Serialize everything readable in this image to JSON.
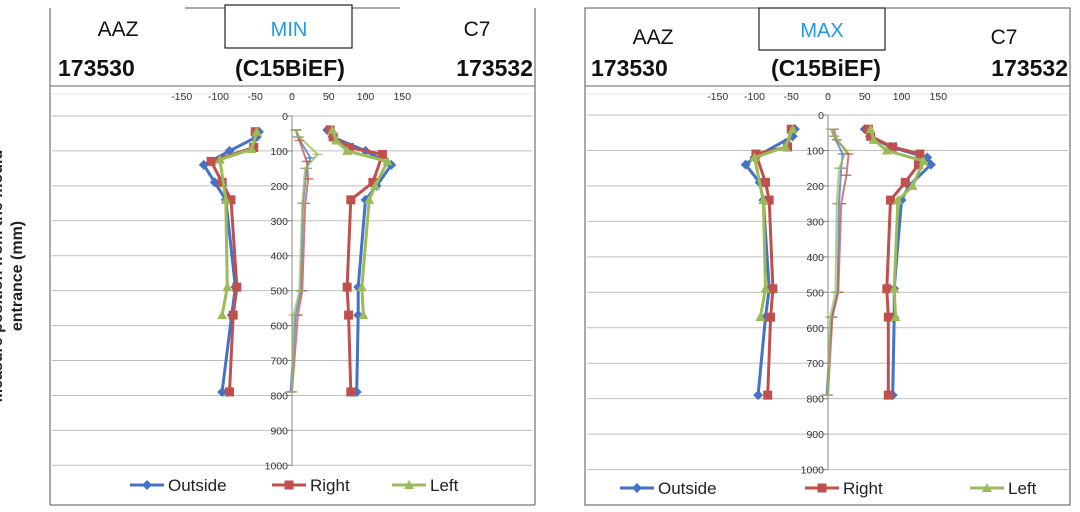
{
  "y_axis_title": "Measure position from the mould entrance (mm)",
  "legend": [
    {
      "name": "Outside",
      "color": "#4472C4",
      "marker": "diamond"
    },
    {
      "name": "Right",
      "color": "#C0504D",
      "marker": "square"
    },
    {
      "name": "Left",
      "color": "#9BBB59",
      "marker": "triangle"
    }
  ],
  "panels": [
    {
      "header": {
        "left_label": "AAZ",
        "center_label": "MIN",
        "right_label": "C7",
        "left_code": "173530",
        "center_code": "(C15BiEF)",
        "right_code": "173532"
      }
    },
    {
      "header": {
        "left_label": "AAZ",
        "center_label": "MAX",
        "right_label": "C7",
        "left_code": "173530",
        "center_code": "(C15BiEF)",
        "right_code": "173532"
      }
    }
  ],
  "chart_data": [
    {
      "type": "line",
      "title": "MIN",
      "x_ticks": [
        -150,
        -100,
        -50,
        0,
        50,
        100,
        150
      ],
      "y_ticks": [
        0,
        100,
        200,
        300,
        400,
        500,
        600,
        700,
        800,
        900,
        1000
      ],
      "xlim": [
        -155,
        155
      ],
      "ylim": [
        0,
        1000
      ],
      "y_reversed": true,
      "grid": "horizontal",
      "groups": [
        {
          "name": "AAZ 173530",
          "series": [
            {
              "name": "Outside",
              "y": [
                45,
                60,
                100,
                140,
                190,
                240,
                490,
                570,
                790
              ],
              "x": [
                -45,
                -48,
                -85,
                -120,
                -105,
                -90,
                -77,
                -82,
                -95
              ]
            },
            {
              "name": "Right",
              "y": [
                45,
                90,
                130,
                190,
                240,
                490,
                570,
                790
              ],
              "x": [
                -50,
                -52,
                -110,
                -95,
                -83,
                -75,
                -80,
                -85
              ]
            },
            {
              "name": "Left",
              "y": [
                45,
                95,
                125,
                240,
                490,
                570
              ],
              "x": [
                -48,
                -55,
                -98,
                -90,
                -88,
                -95
              ]
            }
          ]
        },
        {
          "name": "C15BiEF",
          "series": [
            {
              "name": "Outside",
              "y": [
                40,
                60,
                120,
                150,
                250,
                500,
                570,
                790
              ],
              "x": [
                5,
                8,
                25,
                20,
                15,
                12,
                5,
                -2
              ]
            },
            {
              "name": "Right",
              "y": [
                40,
                70,
                130,
                180,
                250,
                500,
                570,
                790
              ],
              "x": [
                6,
                10,
                20,
                22,
                18,
                14,
                8,
                0
              ]
            },
            {
              "name": "Left",
              "y": [
                40,
                60,
                110,
                150,
                250,
                500,
                570,
                790
              ],
              "x": [
                5,
                10,
                35,
                18,
                14,
                10,
                2,
                0
              ]
            }
          ]
        },
        {
          "name": "C7 173532",
          "series": [
            {
              "name": "Outside",
              "y": [
                40,
                60,
                100,
                140,
                200,
                240,
                490,
                570,
                790
              ],
              "x": [
                48,
                55,
                100,
                135,
                115,
                100,
                90,
                90,
                88
              ]
            },
            {
              "name": "Right",
              "y": [
                40,
                60,
                90,
                110,
                190,
                240,
                490,
                570,
                790
              ],
              "x": [
                52,
                56,
                78,
                123,
                110,
                80,
                75,
                77,
                80
              ]
            },
            {
              "name": "Left",
              "y": [
                40,
                70,
                100,
                130,
                200,
                240,
                490,
                570
              ],
              "x": [
                55,
                60,
                75,
                130,
                113,
                105,
                95,
                97
              ]
            }
          ]
        }
      ]
    },
    {
      "type": "line",
      "title": "MAX",
      "x_ticks": [
        -150,
        -100,
        -50,
        0,
        50,
        100,
        150
      ],
      "y_ticks": [
        0,
        100,
        200,
        300,
        400,
        500,
        600,
        700,
        800,
        900,
        1000
      ],
      "xlim": [
        -155,
        155
      ],
      "ylim": [
        0,
        1000
      ],
      "y_reversed": true,
      "grid": "horizontal",
      "groups": [
        {
          "name": "AAZ 173530",
          "series": [
            {
              "name": "Outside",
              "y": [
                40,
                60,
                120,
                140,
                190,
                240,
                490,
                570,
                790
              ],
              "x": [
                -45,
                -48,
                -100,
                -112,
                -93,
                -88,
                -80,
                -85,
                -95
              ]
            },
            {
              "name": "Right",
              "y": [
                40,
                90,
                110,
                190,
                240,
                490,
                570,
                790
              ],
              "x": [
                -50,
                -55,
                -98,
                -85,
                -80,
                -75,
                -78,
                -82
              ]
            },
            {
              "name": "Left",
              "y": [
                40,
                90,
                120,
                240,
                490,
                570
              ],
              "x": [
                -48,
                -58,
                -100,
                -88,
                -85,
                -92
              ]
            }
          ]
        },
        {
          "name": "C15BiEF",
          "series": [
            {
              "name": "Outside",
              "y": [
                40,
                60,
                110,
                150,
                250,
                500,
                570,
                790
              ],
              "x": [
                5,
                8,
                20,
                18,
                15,
                13,
                5,
                -2
              ]
            },
            {
              "name": "Right",
              "y": [
                40,
                70,
                110,
                170,
                250,
                500,
                570,
                790
              ],
              "x": [
                8,
                12,
                28,
                25,
                18,
                14,
                6,
                0
              ]
            },
            {
              "name": "Left",
              "y": [
                40,
                60,
                100,
                150,
                250,
                500,
                570,
                790
              ],
              "x": [
                4,
                8,
                25,
                15,
                12,
                10,
                3,
                0
              ]
            }
          ]
        },
        {
          "name": "C7 173532",
          "series": [
            {
              "name": "Outside",
              "y": [
                40,
                60,
                90,
                120,
                140,
                200,
                240,
                490,
                570,
                790
              ],
              "x": [
                50,
                57,
                85,
                135,
                140,
                110,
                100,
                90,
                90,
                88
              ]
            },
            {
              "name": "Right",
              "y": [
                40,
                60,
                90,
                110,
                140,
                190,
                240,
                490,
                570,
                790
              ],
              "x": [
                55,
                58,
                88,
                125,
                123,
                105,
                85,
                80,
                82,
                82
              ]
            },
            {
              "name": "Left",
              "y": [
                40,
                70,
                100,
                130,
                200,
                240,
                490,
                570
              ],
              "x": [
                58,
                62,
                80,
                130,
                115,
                95,
                90,
                92
              ]
            }
          ]
        }
      ]
    }
  ]
}
